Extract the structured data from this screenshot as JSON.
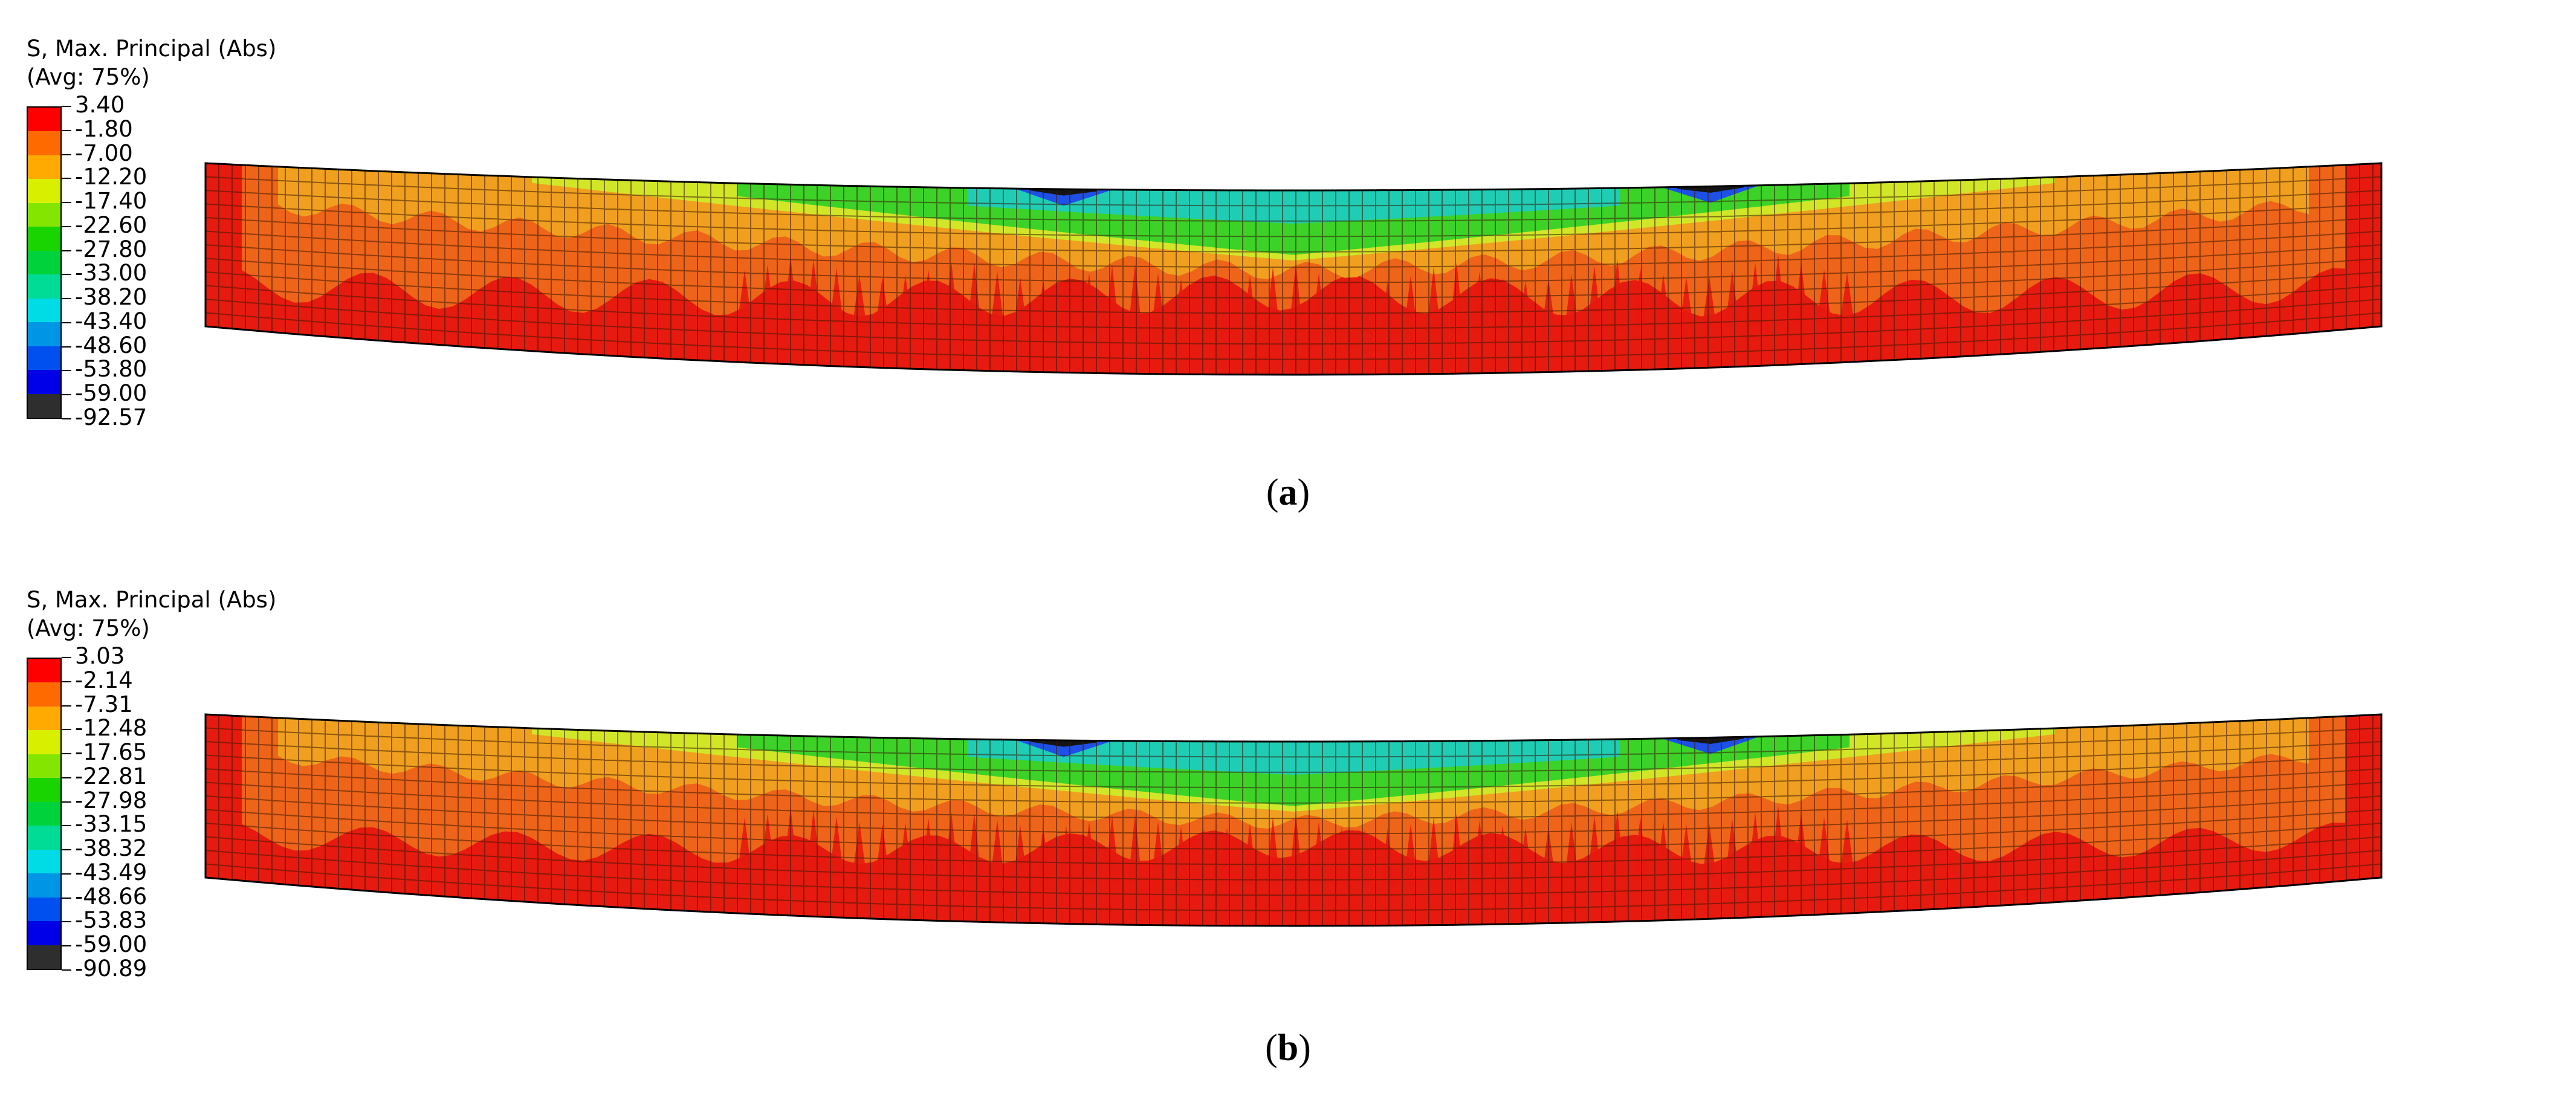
{
  "panels": [
    {
      "legend_title_line1": "S, Max. Principal (Abs)",
      "legend_title_line2": "(Avg: 75%)",
      "legend_values": [
        "3.40",
        "-1.80",
        "-7.00",
        "-12.20",
        "-17.40",
        "-22.60",
        "-27.80",
        "-33.00",
        "-38.20",
        "-43.40",
        "-48.60",
        "-53.80",
        "-59.00",
        "-92.57"
      ],
      "caption_open": "(",
      "caption_letter": "a",
      "caption_close": ")"
    },
    {
      "legend_title_line1": "S, Max. Principal (Abs)",
      "legend_title_line2": "(Avg: 75%)",
      "legend_values": [
        "3.03",
        "-2.14",
        "-7.31",
        "-12.48",
        "-17.65",
        "-22.81",
        "-27.98",
        "-33.15",
        "-38.32",
        "-43.49",
        "-48.66",
        "-53.83",
        "-59.00",
        "-90.89"
      ],
      "caption_open": "(",
      "caption_letter": "b",
      "caption_close": ")"
    }
  ],
  "legend_colors": [
    "#ff0000",
    "#ff6a00",
    "#ffaa00",
    "#d8f000",
    "#84e600",
    "#1ad400",
    "#00d23c",
    "#00dc96",
    "#00dce6",
    "#0096e6",
    "#0050f0",
    "#0000e6",
    "#2e2e2e"
  ],
  "beam_colors": {
    "tension_red": "#e61a0e",
    "orange": "#ee6418",
    "light_orange": "#f0a01e",
    "yellow": "#d2e628",
    "green": "#3cd228",
    "cyan": "#1ecdb4",
    "blue": "#1e50e6",
    "dark": "#141414",
    "mesh": "#3a1a08"
  }
}
